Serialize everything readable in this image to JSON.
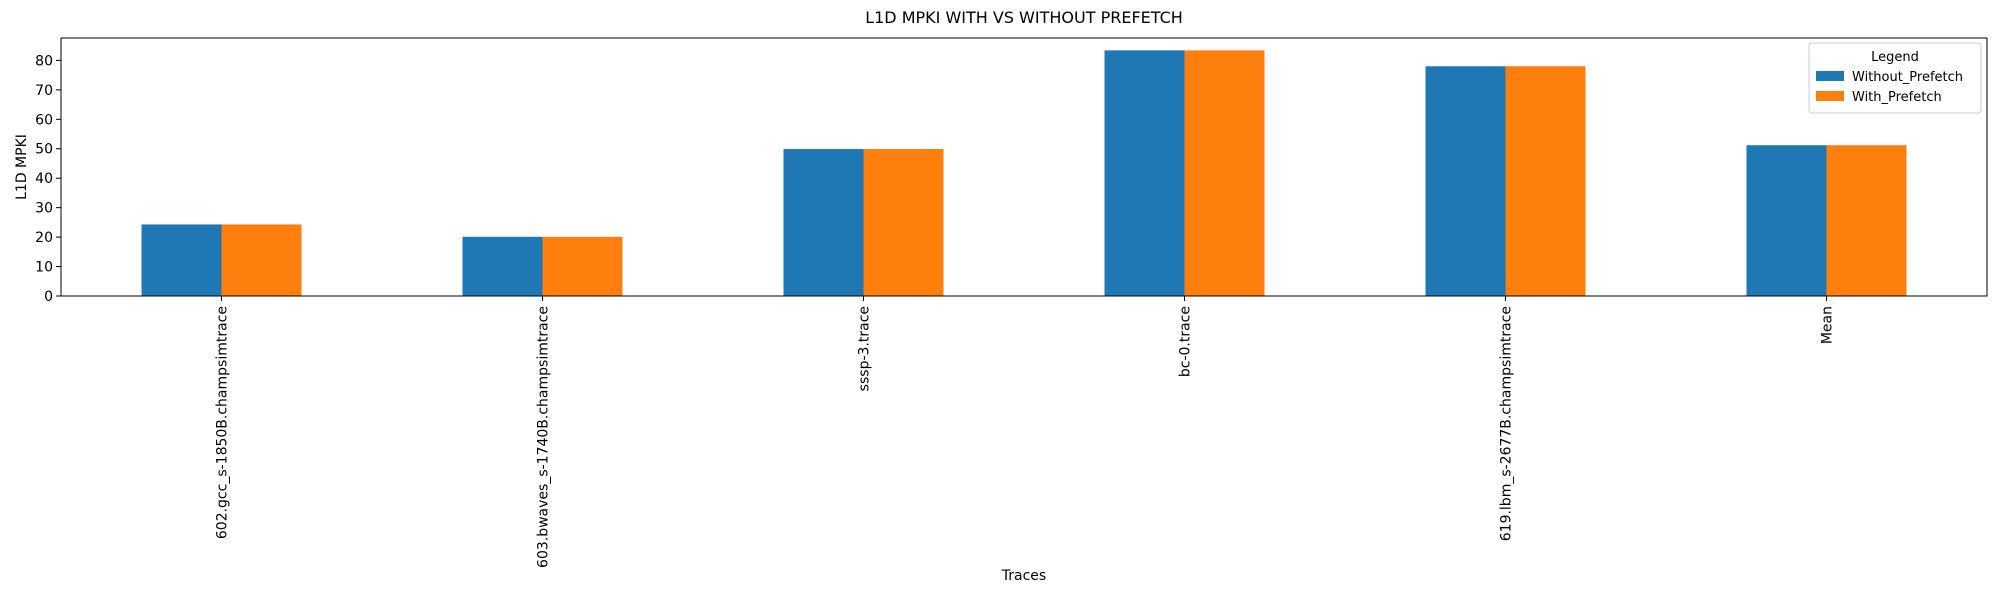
{
  "chart_data": {
    "type": "bar",
    "title": "L1D MPKI WITH VS WITHOUT PREFETCH",
    "xlabel": "Traces",
    "ylabel": "L1D MPKI",
    "categories": [
      "602.gcc_s-1850B.champsimtrace",
      "603.bwaves_s-1740B.champsimtrace",
      "sssp-3.trace",
      "bc-0.trace",
      "619.lbm_s-2677B.champsimtrace",
      "Mean"
    ],
    "series": [
      {
        "name": "Without_Prefetch",
        "color": "#1f77b4",
        "values": [
          24.3,
          20.1,
          49.9,
          83.4,
          78.0,
          51.2
        ]
      },
      {
        "name": "With_Prefetch",
        "color": "#ff7f0e",
        "values": [
          24.3,
          20.1,
          49.9,
          83.4,
          78.0,
          51.2
        ]
      }
    ],
    "ylim": [
      0,
      87.6
    ],
    "yticks": [
      0,
      10,
      20,
      30,
      40,
      50,
      60,
      70,
      80
    ],
    "legend": {
      "title": "Legend",
      "placement": "top-right"
    },
    "grid": false
  }
}
